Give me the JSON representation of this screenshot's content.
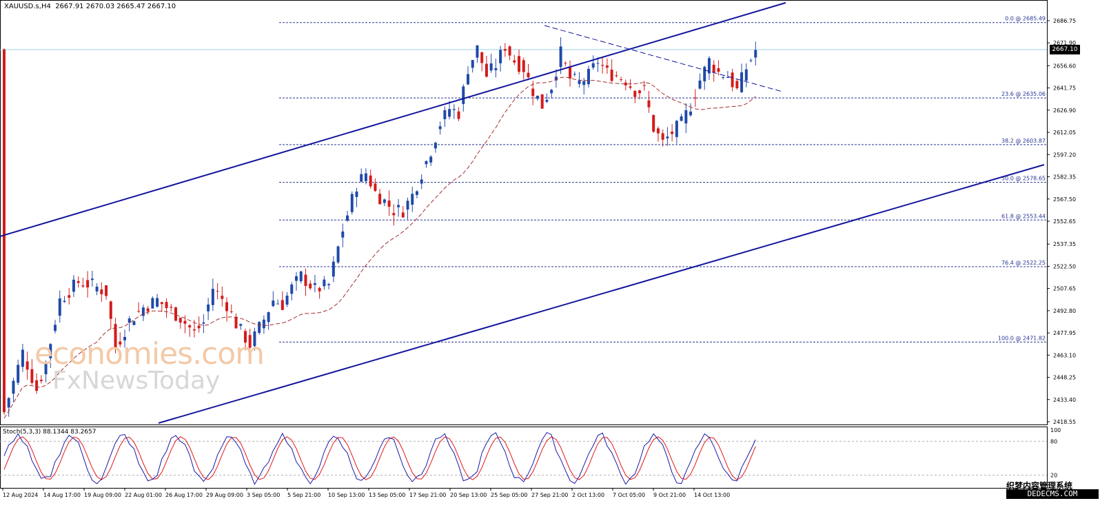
{
  "header": {
    "symbol_tf": "XAUUSD.s,H4",
    "ohlc": "2667.91 2670.03 2665.47 2667.10"
  },
  "stoch_label": "Stoch(5,3,3) 88.1344 83.2657",
  "watermark": {
    "line1": "economies.com",
    "line2": "FxNewsToday"
  },
  "brand": {
    "line1": "织梦内容管理系统",
    "line2": "DEDECMS.COM"
  },
  "current_price": "2667.10",
  "colors": {
    "bull": "#1f4aa8",
    "bear": "#d41b1b",
    "channel": "#10149c",
    "ma": "#a52d2d",
    "fib": "#283593",
    "stochK": "#1a1aa8",
    "stochD": "#e01818"
  },
  "chart_data": {
    "type": "candlestick",
    "symbol": "XAUUSD.s",
    "timeframe": "H4",
    "y_ticks": [
      "2686.75",
      "2671.90",
      "2656.60",
      "2641.75",
      "2626.90",
      "2612.05",
      "2597.20",
      "2582.35",
      "2567.50",
      "2552.65",
      "2537.35",
      "2522.50",
      "2507.65",
      "2492.80",
      "2477.95",
      "2463.10",
      "2448.25",
      "2433.40",
      "2418.55"
    ],
    "ylim": [
      2418.55,
      2686.75
    ],
    "x_ticks": [
      "12 Aug 2024",
      "14 Aug 17:00",
      "19 Aug 09:00",
      "22 Aug 01:00",
      "26 Aug 17:00",
      "29 Aug 09:00",
      "3 Sep 05:00",
      "5 Sep 21:00",
      "10 Sep 13:00",
      "13 Sep 05:00",
      "17 Sep 21:00",
      "20 Sep 13:00",
      "25 Sep 05:00",
      "27 Sep 21:00",
      "2 Oct 13:00",
      "7 Oct 05:00",
      "9 Oct 21:00",
      "14 Oct 13:00"
    ],
    "fib_levels": [
      {
        "label": "0.0 @ 2685.49",
        "price": 2685.49
      },
      {
        "label": "23.6 @ 2635.06",
        "price": 2635.06
      },
      {
        "label": "38.2 @ 2603.87",
        "price": 2603.87
      },
      {
        "label": "50.0 @ 2578.65",
        "price": 2578.65
      },
      {
        "label": "61.8 @ 2553.44",
        "price": 2553.44
      },
      {
        "label": "76.4 @ 2522.25",
        "price": 2522.25
      },
      {
        "label": "100.0 @ 2471.82",
        "price": 2471.82
      }
    ],
    "close_path": [
      [
        0,
        2425
      ],
      [
        4,
        2465
      ],
      [
        7,
        2440
      ],
      [
        9,
        2458
      ],
      [
        12,
        2500
      ],
      [
        16,
        2512
      ],
      [
        19,
        2510
      ],
      [
        22,
        2505
      ],
      [
        24,
        2468
      ],
      [
        27,
        2486
      ],
      [
        30,
        2495
      ],
      [
        33,
        2500
      ],
      [
        35,
        2495
      ],
      [
        38,
        2488
      ],
      [
        41,
        2478
      ],
      [
        43,
        2485
      ],
      [
        45,
        2508
      ],
      [
        48,
        2497
      ],
      [
        50,
        2484
      ],
      [
        53,
        2470
      ],
      [
        56,
        2487
      ],
      [
        58,
        2500
      ],
      [
        60,
        2497
      ],
      [
        62,
        2508
      ],
      [
        64,
        2516
      ],
      [
        67,
        2507
      ],
      [
        70,
        2510
      ],
      [
        73,
        2547
      ],
      [
        76,
        2577
      ],
      [
        78,
        2585
      ],
      [
        80,
        2572
      ],
      [
        82,
        2566
      ],
      [
        84,
        2560
      ],
      [
        86,
        2560
      ],
      [
        88,
        2570
      ],
      [
        90,
        2585
      ],
      [
        92,
        2600
      ],
      [
        94,
        2618
      ],
      [
        96,
        2628
      ],
      [
        98,
        2625
      ],
      [
        100,
        2655
      ],
      [
        102,
        2668
      ],
      [
        104,
        2650
      ],
      [
        106,
        2657
      ],
      [
        108,
        2670
      ],
      [
        110,
        2660
      ],
      [
        112,
        2655
      ],
      [
        114,
        2640
      ],
      [
        116,
        2630
      ],
      [
        118,
        2643
      ],
      [
        120,
        2665
      ],
      [
        122,
        2648
      ],
      [
        124,
        2645
      ],
      [
        126,
        2650
      ],
      [
        128,
        2660
      ],
      [
        130,
        2652
      ],
      [
        132,
        2650
      ],
      [
        134,
        2647
      ],
      [
        136,
        2640
      ],
      [
        138,
        2640
      ],
      [
        140,
        2615
      ],
      [
        142,
        2605
      ],
      [
        144,
        2612
      ],
      [
        146,
        2618
      ],
      [
        148,
        2630
      ],
      [
        150,
        2647
      ],
      [
        152,
        2660
      ],
      [
        154,
        2652
      ],
      [
        156,
        2650
      ],
      [
        158,
        2640
      ],
      [
        160,
        2655
      ],
      [
        162,
        2667
      ]
    ],
    "bar_count": 163,
    "channel_upper": [
      {
        "x": 0,
        "y": 590
      },
      {
        "x": 1140,
        "y": 4
      }
    ],
    "channel_lower": [
      {
        "x": 230,
        "y": 614
      },
      {
        "x": 1515,
        "y": 239
      }
    ],
    "trendline_dashed": [
      {
        "x": 790,
        "y": 37
      },
      {
        "x": 1135,
        "y": 133
      }
    ],
    "stochastic": {
      "params": "5,3,3",
      "k": 88.1344,
      "d": 83.2657,
      "levels": [
        20,
        80
      ],
      "axis": [
        "100",
        "80",
        "20"
      ]
    }
  }
}
